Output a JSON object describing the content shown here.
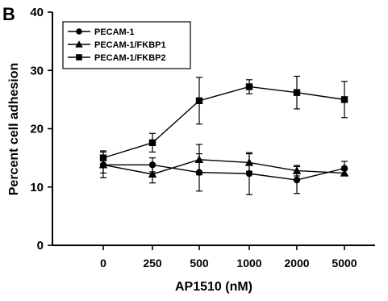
{
  "chart_data": {
    "type": "line",
    "panel_label": "B",
    "xlabel": "AP1510 (nM)",
    "ylabel": "Percent cell adhesion",
    "categories": [
      "0",
      "250",
      "500",
      "1000",
      "2000",
      "5000"
    ],
    "ylim": [
      0,
      40
    ],
    "yticks": [
      "0",
      "10",
      "20",
      "30",
      "40"
    ],
    "grid": false,
    "legend_position": "top-left",
    "series": [
      {
        "name": "PECAM-1",
        "marker": "circle",
        "values": [
          13.8,
          13.8,
          12.5,
          12.3,
          11.2,
          13.2
        ],
        "errors": [
          2.2,
          1.2,
          3.2,
          3.6,
          2.3,
          1.2
        ]
      },
      {
        "name": "PECAM-1/FKBP1",
        "marker": "triangle",
        "values": [
          13.8,
          12.2,
          14.7,
          14.2,
          12.8,
          12.4
        ],
        "errors": [
          1.4,
          1.5,
          2.6,
          1.5,
          0.9,
          0.5
        ]
      },
      {
        "name": "PECAM-1/FKBP2",
        "marker": "square",
        "values": [
          15.0,
          17.6,
          24.8,
          27.2,
          26.2,
          25.0
        ],
        "errors": [
          1.2,
          1.6,
          4.0,
          1.2,
          2.8,
          3.1
        ]
      }
    ]
  }
}
